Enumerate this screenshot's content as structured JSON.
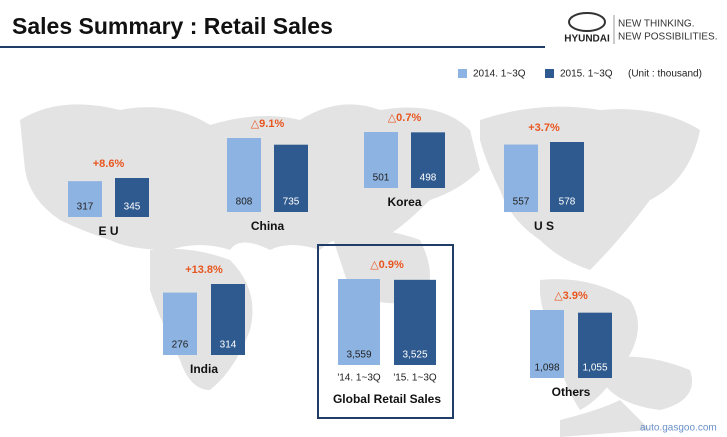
{
  "header": {
    "title": "Sales Summary : Retail Sales",
    "brand": "HYUNDAI",
    "slogan_1": "NEW THINKING.",
    "slogan_2": "NEW POSSIBILITIES."
  },
  "legend": {
    "series": [
      {
        "name": "2014. 1~3Q",
        "color": "#8db3e2"
      },
      {
        "name": "2015. 1~3Q",
        "color": "#2f5a8f"
      }
    ],
    "unit": "(Unit : thousand)"
  },
  "regions": [
    {
      "name": "E U",
      "change": "+8.6%",
      "values": [
        317,
        345
      ]
    },
    {
      "name": "China",
      "change": "△9.1%",
      "values": [
        808,
        735
      ]
    },
    {
      "name": "Korea",
      "change": "△0.7%",
      "values": [
        501,
        498
      ]
    },
    {
      "name": "U S",
      "change": "+3.7%",
      "values": [
        557,
        578
      ]
    },
    {
      "name": "India",
      "change": "+13.8%",
      "values": [
        276,
        314
      ]
    },
    {
      "name": "Global Retail Sales",
      "change": "△0.9%",
      "categories": [
        "'14. 1~3Q",
        "'15. 1~3Q"
      ],
      "values": [
        3559,
        3525
      ],
      "value_labels": [
        "3,559",
        "3,525"
      ]
    },
    {
      "name": "Others",
      "change": "△3.9%",
      "values": [
        1098,
        1055
      ],
      "value_labels": [
        "1,098",
        "1,055"
      ]
    }
  ],
  "watermark": "auto.gasgoo.com"
}
